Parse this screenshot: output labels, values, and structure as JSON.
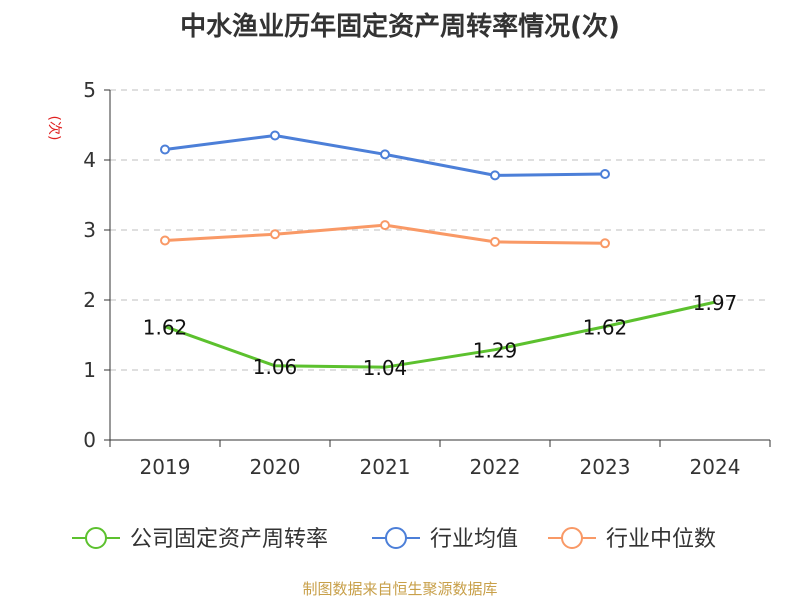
{
  "chart_data": {
    "type": "line",
    "title": "中水渔业历年固定资产周转率情况(次)",
    "ylabel": "(次)",
    "xlabel": "",
    "categories": [
      "2019",
      "2020",
      "2021",
      "2022",
      "2023",
      "2024"
    ],
    "ylim": [
      0,
      5
    ],
    "yticks": [
      0,
      1,
      2,
      3,
      4,
      5
    ],
    "grid": true,
    "legend_position": "bottom",
    "series": [
      {
        "name": "公司固定资产周转率",
        "values": [
          1.62,
          1.06,
          1.04,
          1.29,
          1.62,
          1.97
        ],
        "labels": [
          "1.62",
          "1.06",
          "1.04",
          "1.29",
          "1.62",
          "1.97"
        ],
        "color": "#5cc12e",
        "markers": false
      },
      {
        "name": "行业均值",
        "values": [
          4.15,
          4.35,
          4.08,
          3.78,
          3.8,
          null
        ],
        "color": "#4c7fd8",
        "markers": true
      },
      {
        "name": "行业中位数",
        "values": [
          2.85,
          2.94,
          3.07,
          2.83,
          2.81,
          null
        ],
        "color": "#f99966",
        "markers": true
      }
    ]
  },
  "source": "制图数据来自恒生聚源数据库",
  "colors": {
    "axis": "#333333",
    "grid": "#cccccc",
    "ylabel": "#e02020"
  }
}
